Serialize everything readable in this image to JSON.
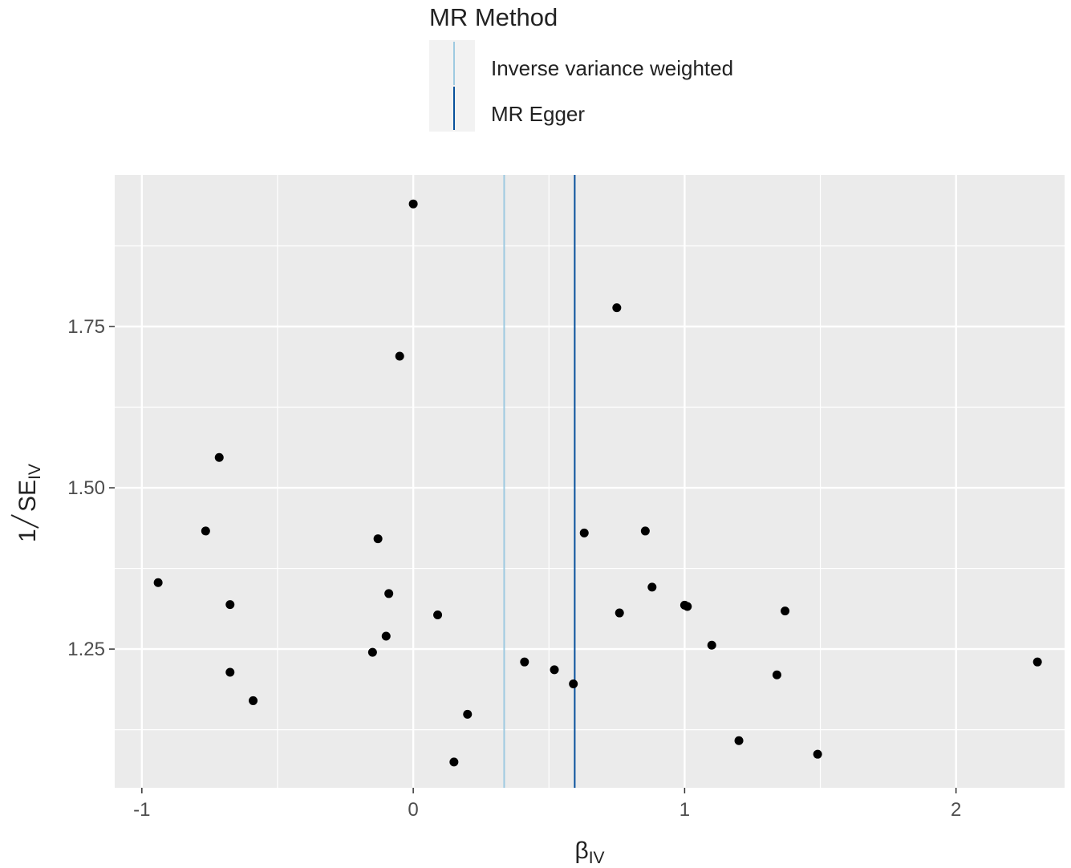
{
  "chart_data": {
    "type": "scatter",
    "legend": {
      "title": "MR Method",
      "placement": "top",
      "entries": [
        {
          "label": "Inverse variance weighted",
          "color": "#9ecae1"
        },
        {
          "label": "MR Egger",
          "color": "#08519c"
        }
      ]
    },
    "xlabel": {
      "main": "β",
      "sub": "IV"
    },
    "ylabel": {
      "num": "1",
      "main": "SE",
      "sub": "IV"
    },
    "xlim": [
      -1.1,
      2.4
    ],
    "ylim": [
      1.035,
      1.985
    ],
    "x_ticks": [
      -1,
      0,
      1,
      2
    ],
    "x_tick_labels": [
      "-1",
      "0",
      "1",
      "2"
    ],
    "y_ticks": [
      1.25,
      1.5,
      1.75
    ],
    "y_tick_labels": [
      "1.25",
      "1.50",
      "1.75"
    ],
    "x_minor_grid": [
      -0.5,
      0.5,
      1.5
    ],
    "y_minor_grid": [
      1.125,
      1.375,
      1.625,
      1.875
    ],
    "grid": true,
    "panel_color": "#ebebeb",
    "point_color": "#000000",
    "vlines": [
      {
        "method": "Inverse variance weighted",
        "x": 0.335,
        "color": "#9ecae1"
      },
      {
        "method": "MR Egger",
        "x": 0.595,
        "color": "#08519c"
      }
    ],
    "points": [
      {
        "x": 0.0,
        "y": 1.94
      },
      {
        "x": 0.75,
        "y": 1.779
      },
      {
        "x": -0.05,
        "y": 1.704
      },
      {
        "x": -0.715,
        "y": 1.547
      },
      {
        "x": -0.765,
        "y": 1.433
      },
      {
        "x": -0.13,
        "y": 1.421
      },
      {
        "x": 0.63,
        "y": 1.43
      },
      {
        "x": 0.855,
        "y": 1.433
      },
      {
        "x": -0.94,
        "y": 1.353
      },
      {
        "x": 0.88,
        "y": 1.346
      },
      {
        "x": -0.09,
        "y": 1.336
      },
      {
        "x": -0.675,
        "y": 1.319
      },
      {
        "x": 1.0,
        "y": 1.318
      },
      {
        "x": 1.01,
        "y": 1.316
      },
      {
        "x": 1.37,
        "y": 1.309
      },
      {
        "x": 0.76,
        "y": 1.306
      },
      {
        "x": 0.09,
        "y": 1.303
      },
      {
        "x": -0.1,
        "y": 1.27
      },
      {
        "x": 1.1,
        "y": 1.256
      },
      {
        "x": -0.15,
        "y": 1.245
      },
      {
        "x": 2.3,
        "y": 1.23
      },
      {
        "x": 0.41,
        "y": 1.23
      },
      {
        "x": 0.52,
        "y": 1.218
      },
      {
        "x": -0.675,
        "y": 1.214
      },
      {
        "x": 1.34,
        "y": 1.21
      },
      {
        "x": 0.59,
        "y": 1.196
      },
      {
        "x": -0.59,
        "y": 1.17
      },
      {
        "x": 0.2,
        "y": 1.149
      },
      {
        "x": 1.2,
        "y": 1.108
      },
      {
        "x": 1.49,
        "y": 1.087
      },
      {
        "x": 0.15,
        "y": 1.075
      }
    ]
  }
}
